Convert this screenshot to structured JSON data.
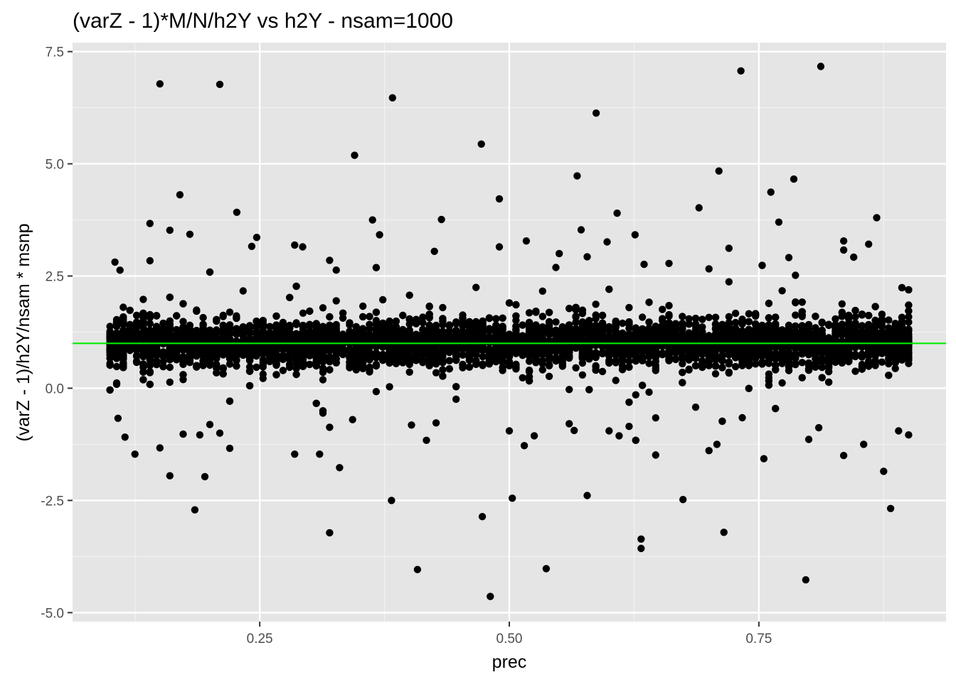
{
  "chart_data": {
    "type": "scatter",
    "title": "(varZ - 1)*M/N/h2Y vs h2Y - nsam=1000",
    "xlabel": "prec",
    "ylabel": "(varZ - 1)/h2Y/nsam * msnp",
    "xlim": [
      0.0625,
      0.9375
    ],
    "ylim": [
      -5.2,
      7.7
    ],
    "x_ticks": [
      0.25,
      0.5,
      0.75
    ],
    "x_tick_labels": [
      "0.25",
      "0.50",
      "0.75"
    ],
    "y_ticks": [
      -5.0,
      -2.5,
      0.0,
      2.5,
      5.0,
      7.5
    ],
    "y_tick_labels": [
      "-5.0",
      "-2.5",
      "0.0",
      "2.5",
      "5.0",
      "7.5"
    ],
    "grid": true,
    "legend": "none",
    "reference_line": {
      "y": 1.0,
      "color": "#00ee00"
    },
    "point_color": "#000000",
    "panel_background": "#e5e5e5",
    "dense_band": {
      "x_range": [
        0.1,
        0.9
      ],
      "y_center": 1.0,
      "y_spread": 0.55,
      "description_count": 6000
    },
    "outliers": [
      {
        "x": 0.15,
        "y": 6.78
      },
      {
        "x": 0.21,
        "y": 6.77
      },
      {
        "x": 0.383,
        "y": 6.47
      },
      {
        "x": 0.345,
        "y": 5.19
      },
      {
        "x": 0.472,
        "y": 5.44
      },
      {
        "x": 0.587,
        "y": 6.13
      },
      {
        "x": 0.732,
        "y": 7.07
      },
      {
        "x": 0.812,
        "y": 7.17
      },
      {
        "x": 0.71,
        "y": 4.84
      },
      {
        "x": 0.568,
        "y": 4.73
      },
      {
        "x": 0.785,
        "y": 4.66
      },
      {
        "x": 0.762,
        "y": 4.37
      },
      {
        "x": 0.17,
        "y": 4.31
      },
      {
        "x": 0.49,
        "y": 4.22
      },
      {
        "x": 0.69,
        "y": 4.02
      },
      {
        "x": 0.227,
        "y": 3.92
      },
      {
        "x": 0.608,
        "y": 3.9
      },
      {
        "x": 0.868,
        "y": 3.8
      },
      {
        "x": 0.432,
        "y": 3.76
      },
      {
        "x": 0.363,
        "y": 3.75
      },
      {
        "x": 0.77,
        "y": 3.7
      },
      {
        "x": 0.14,
        "y": 3.67
      },
      {
        "x": 0.16,
        "y": 3.52
      },
      {
        "x": 0.572,
        "y": 3.53
      },
      {
        "x": 0.18,
        "y": 3.43
      },
      {
        "x": 0.626,
        "y": 3.42
      },
      {
        "x": 0.37,
        "y": 3.42
      },
      {
        "x": 0.247,
        "y": 3.36
      },
      {
        "x": 0.517,
        "y": 3.28
      },
      {
        "x": 0.598,
        "y": 3.26
      },
      {
        "x": 0.835,
        "y": 3.28
      },
      {
        "x": 0.86,
        "y": 3.21
      },
      {
        "x": 0.285,
        "y": 3.19
      },
      {
        "x": 0.293,
        "y": 3.15
      },
      {
        "x": 0.49,
        "y": 3.15
      },
      {
        "x": 0.72,
        "y": 3.12
      },
      {
        "x": 0.66,
        "y": 2.78
      },
      {
        "x": 0.835,
        "y": 3.08
      },
      {
        "x": 0.425,
        "y": 3.05
      },
      {
        "x": 0.242,
        "y": 3.16
      },
      {
        "x": 0.55,
        "y": 3.0
      },
      {
        "x": 0.32,
        "y": 2.85
      },
      {
        "x": 0.14,
        "y": 2.84
      },
      {
        "x": 0.578,
        "y": 2.93
      },
      {
        "x": 0.78,
        "y": 2.91
      },
      {
        "x": 0.845,
        "y": 2.92
      },
      {
        "x": 0.105,
        "y": 2.81
      },
      {
        "x": 0.635,
        "y": 2.76
      },
      {
        "x": 0.7,
        "y": 2.66
      },
      {
        "x": 0.11,
        "y": 2.63
      },
      {
        "x": 0.185,
        "y": -2.71
      },
      {
        "x": 0.195,
        "y": -1.97
      },
      {
        "x": 0.16,
        "y": -1.95
      },
      {
        "x": 0.125,
        "y": -1.47
      },
      {
        "x": 0.22,
        "y": -1.34
      },
      {
        "x": 0.33,
        "y": -1.77
      },
      {
        "x": 0.32,
        "y": -3.22
      },
      {
        "x": 0.382,
        "y": -2.5
      },
      {
        "x": 0.408,
        "y": -4.04
      },
      {
        "x": 0.473,
        "y": -2.86
      },
      {
        "x": 0.481,
        "y": -4.64
      },
      {
        "x": 0.503,
        "y": -2.45
      },
      {
        "x": 0.537,
        "y": -4.02
      },
      {
        "x": 0.578,
        "y": -2.39
      },
      {
        "x": 0.632,
        "y": -3.36
      },
      {
        "x": 0.632,
        "y": -3.57
      },
      {
        "x": 0.674,
        "y": -2.48
      },
      {
        "x": 0.715,
        "y": -3.21
      },
      {
        "x": 0.797,
        "y": -4.27
      },
      {
        "x": 0.882,
        "y": -2.68
      },
      {
        "x": 0.875,
        "y": -1.85
      },
      {
        "x": 0.755,
        "y": -1.57
      },
      {
        "x": 0.835,
        "y": -1.5
      },
      {
        "x": 0.855,
        "y": -1.25
      },
      {
        "x": 0.7,
        "y": -1.39
      },
      {
        "x": 0.708,
        "y": -1.25
      },
      {
        "x": 0.515,
        "y": -1.28
      },
      {
        "x": 0.417,
        "y": -1.16
      },
      {
        "x": 0.285,
        "y": -1.47
      },
      {
        "x": 0.31,
        "y": -1.47
      },
      {
        "x": 0.19,
        "y": -1.04
      },
      {
        "x": 0.21,
        "y": -1.0
      },
      {
        "x": 0.2,
        "y": -0.81
      },
      {
        "x": 0.32,
        "y": -0.87
      },
      {
        "x": 0.343,
        "y": -0.7
      },
      {
        "x": 0.402,
        "y": -0.82
      },
      {
        "x": 0.5,
        "y": -0.95
      },
      {
        "x": 0.525,
        "y": -1.06
      },
      {
        "x": 0.61,
        "y": -1.06
      },
      {
        "x": 0.6,
        "y": -0.95
      },
      {
        "x": 0.62,
        "y": -0.85
      },
      {
        "x": 0.81,
        "y": -0.88
      },
      {
        "x": 0.8,
        "y": -1.14
      },
      {
        "x": 0.9,
        "y": -1.04
      },
      {
        "x": 0.89,
        "y": -0.95
      },
      {
        "x": 0.15,
        "y": -1.33
      },
      {
        "x": 0.115,
        "y": -1.09
      },
      {
        "x": 0.108,
        "y": -0.67
      },
      {
        "x": 0.565,
        "y": -0.94
      },
      {
        "x": 0.56,
        "y": -0.79
      }
    ]
  }
}
